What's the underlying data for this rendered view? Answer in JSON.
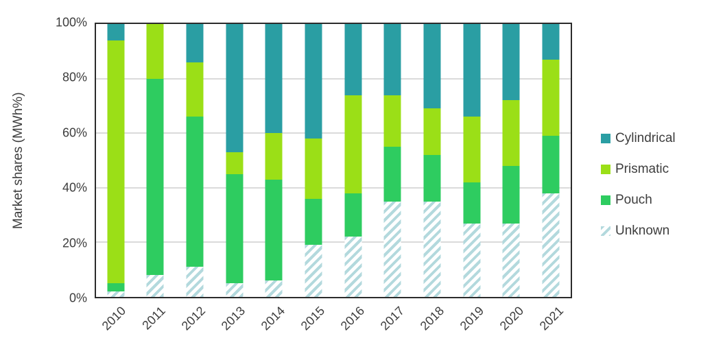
{
  "chart_data": {
    "type": "bar",
    "stacked": true,
    "title": "",
    "xlabel": "",
    "ylabel": "Market shares (MWh%)",
    "ylim": [
      0,
      100
    ],
    "y_ticks": [
      "0%",
      "20%",
      "40%",
      "60%",
      "80%",
      "100%"
    ],
    "grid": "horizontal",
    "legend_position": "right",
    "categories": [
      "2010",
      "2011",
      "2012",
      "2013",
      "2014",
      "2015",
      "2016",
      "2017",
      "2018",
      "2019",
      "2020",
      "2021"
    ],
    "series": [
      {
        "name": "Cylindrical",
        "color": "#2A9EA3",
        "pattern": "solid",
        "values": [
          6,
          0,
          14,
          47,
          40,
          42,
          26,
          26,
          31,
          34,
          28,
          13
        ]
      },
      {
        "name": "Prismatic",
        "color": "#9BDF17",
        "pattern": "solid",
        "values": [
          89,
          20,
          20,
          8,
          17,
          22,
          36,
          19,
          17,
          24,
          24,
          28
        ]
      },
      {
        "name": "Pouch",
        "color": "#2ECC60",
        "pattern": "solid",
        "values": [
          3,
          72,
          55,
          40,
          37,
          17,
          16,
          20,
          17,
          15,
          21,
          21
        ]
      },
      {
        "name": "Unknown",
        "color": "#B3D9DD",
        "pattern": "diagonal-stripes",
        "values": [
          2,
          8,
          11,
          5,
          6,
          19,
          22,
          35,
          35,
          27,
          27,
          38
        ]
      }
    ],
    "stack_order_bottom_to_top": [
      "Unknown",
      "Pouch",
      "Prismatic",
      "Cylindrical"
    ]
  },
  "palette": {
    "background": "#ffffff",
    "grid": "#dadada",
    "border": "#2b2b2b",
    "text": "#3d3d3d",
    "stripe_background": "#ffffff"
  }
}
